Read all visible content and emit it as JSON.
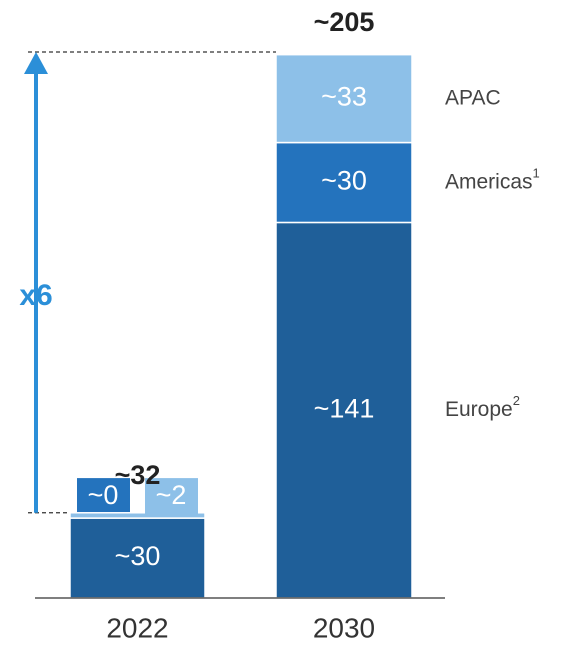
{
  "chart_data": {
    "type": "stacked_bar",
    "categories": [
      "2022",
      "2030"
    ],
    "series": [
      {
        "name": "Europe",
        "footnote": "2",
        "color": "#1f5f99",
        "values": [
          30,
          141
        ],
        "value_labels": [
          "~30",
          "~141"
        ]
      },
      {
        "name": "Americas",
        "footnote": "1",
        "color": "#2473bd",
        "values": [
          0,
          30
        ],
        "value_labels": [
          "~0",
          "~30"
        ]
      },
      {
        "name": "APAC",
        "color": "#8dc0e8",
        "values": [
          2,
          33
        ],
        "value_labels": [
          "~2",
          "~33"
        ]
      }
    ],
    "totals": [
      32,
      205
    ],
    "total_labels": [
      "~32",
      "~205"
    ],
    "annotation": "x6",
    "ylim": [
      0,
      205
    ]
  }
}
